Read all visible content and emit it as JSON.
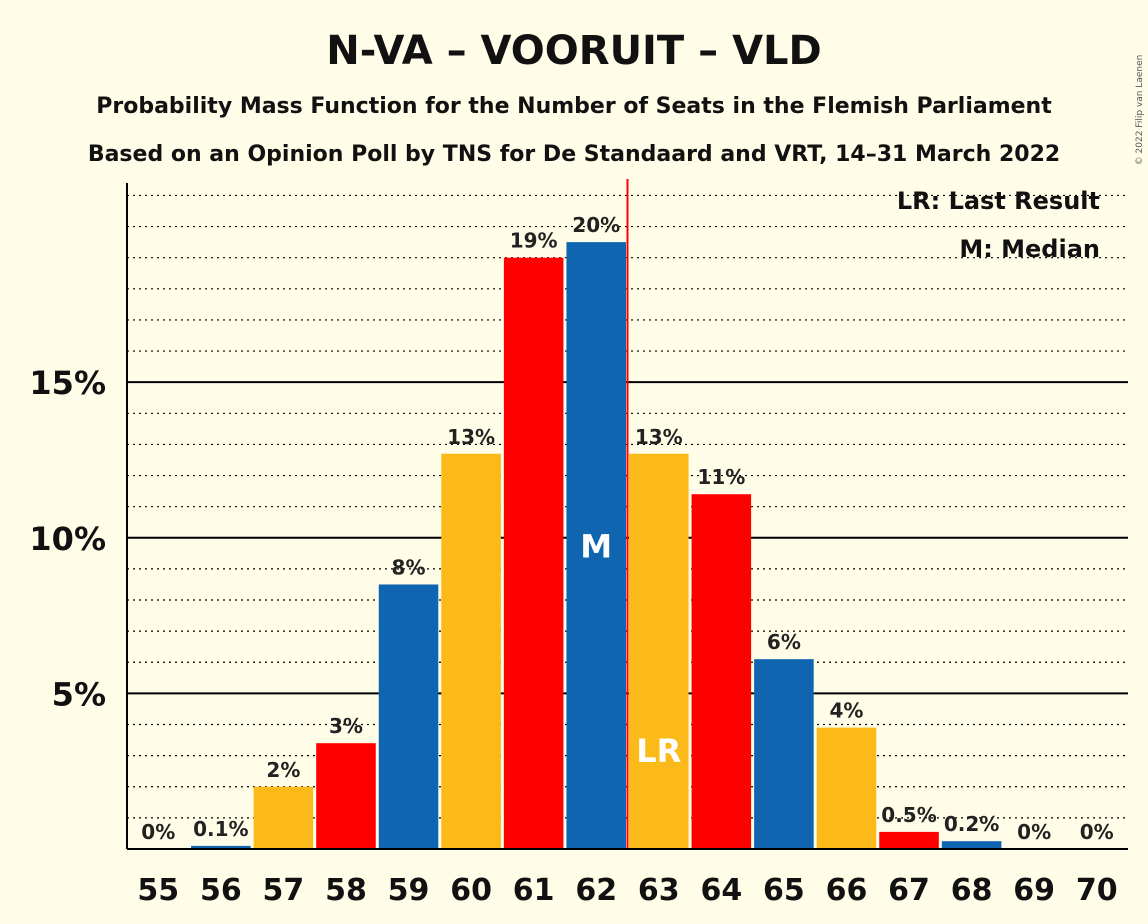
{
  "chart_data": {
    "type": "bar",
    "title": "N-VA – VOORUIT – VLD",
    "subtitle1": "Probability Mass Function for the Number of Seats in the Flemish Parliament",
    "subtitle2": "Based on an Opinion Poll by TNS for De Standaard and VRT, 14–31 March 2022",
    "categories": [
      "55",
      "56",
      "57",
      "58",
      "59",
      "60",
      "61",
      "62",
      "63",
      "64",
      "65",
      "66",
      "67",
      "68",
      "69",
      "70"
    ],
    "values": [
      0,
      0.1,
      2.0,
      3.4,
      8.5,
      12.7,
      19.0,
      19.5,
      12.7,
      11.4,
      6.1,
      3.9,
      0.55,
      0.25,
      0,
      0
    ],
    "labels": [
      "0%",
      "0.1%",
      "2%",
      "3%",
      "8%",
      "13%",
      "19%",
      "20%",
      "13%",
      "11%",
      "6%",
      "4%",
      "0.5%",
      "0.2%",
      "0%",
      "0%"
    ],
    "colors": [
      "#FBBA1A",
      "#1065B0",
      "#FBBA1A",
      "#FF0000",
      "#1065B0",
      "#FBBA1A",
      "#FF0000",
      "#1065B0",
      "#FBBA1A",
      "#FF0000",
      "#1065B0",
      "#FBBA1A",
      "#FF0000",
      "#1065B0",
      "#FBBA1A",
      "#FF0000"
    ],
    "ylim": [
      0,
      21.4
    ],
    "yticks": [
      5,
      10,
      15
    ],
    "ytick_labels": [
      "5%",
      "10%",
      "15%"
    ],
    "minor_grid_step": 1,
    "median_seat": "62",
    "median_marker": "M",
    "last_result_seat": "63",
    "last_result_marker": "LR",
    "last_result_line_color": "#FF0000",
    "legend": [
      "LR: Last Result",
      "M: Median"
    ],
    "legend_position": "top-right",
    "copyright": "© 2022 Filip van Laenen"
  }
}
